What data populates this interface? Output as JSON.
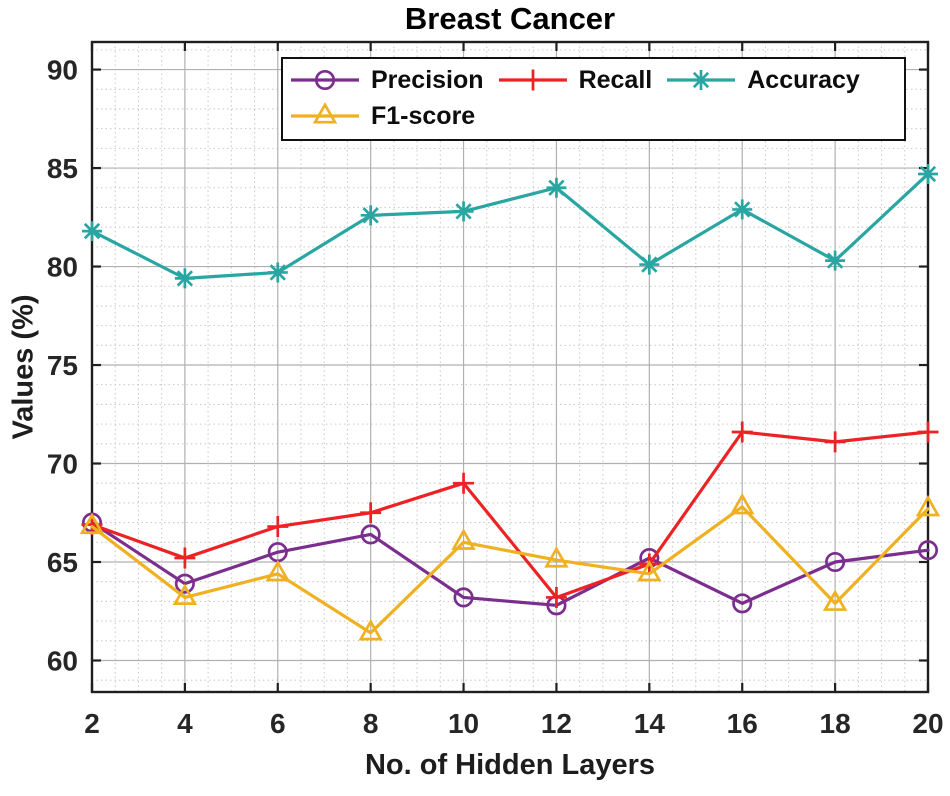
{
  "figure": {
    "title": "Breast Cancer",
    "xlabel": "No. of Hidden Layers",
    "ylabel": "Values (%)"
  },
  "chart_data": {
    "type": "line",
    "title": "Breast Cancer",
    "xlabel": "No. of Hidden Layers",
    "ylabel": "Values (%)",
    "x": [
      2,
      4,
      6,
      8,
      10,
      12,
      14,
      16,
      18,
      20
    ],
    "series": [
      {
        "name": "Precision",
        "color": "#7B2E8E",
        "marker": "circle",
        "values": [
          67.0,
          63.9,
          65.5,
          66.4,
          63.2,
          62.8,
          65.2,
          62.9,
          65.0,
          65.6
        ]
      },
      {
        "name": "Recall",
        "color": "#EC2224",
        "marker": "plus",
        "values": [
          66.9,
          65.2,
          66.8,
          67.5,
          69.0,
          63.2,
          64.9,
          71.6,
          71.1,
          71.6
        ]
      },
      {
        "name": "Accuracy",
        "color": "#29A6A2",
        "marker": "asterisk",
        "values": [
          81.8,
          79.4,
          79.7,
          82.6,
          82.8,
          84.0,
          80.1,
          82.9,
          80.3,
          84.7
        ]
      },
      {
        "name": "F1-score",
        "color": "#EFB122",
        "marker": "triangle",
        "values": [
          66.8,
          63.2,
          64.4,
          61.4,
          66.0,
          65.1,
          64.4,
          67.8,
          62.9,
          67.7
        ]
      }
    ],
    "xticks": [
      2,
      4,
      6,
      8,
      10,
      12,
      14,
      16,
      18,
      20
    ],
    "yticks": [
      60,
      65,
      70,
      75,
      80,
      85,
      90
    ],
    "xlim": [
      2,
      20
    ],
    "ylim": [
      58.4,
      91.4
    ],
    "minor_x_step": 0.5,
    "minor_y_step": 1,
    "grid": true,
    "minor_grid": true,
    "legend_position": "top-inside",
    "legend_rows": [
      3,
      1
    ]
  },
  "style": {
    "background": "#ffffff",
    "axis_color": "#1f1f1f",
    "tick_label_color": "#262626",
    "grid_major_color": "#b0b0b0",
    "grid_minor_color": "#c9c9c9"
  }
}
